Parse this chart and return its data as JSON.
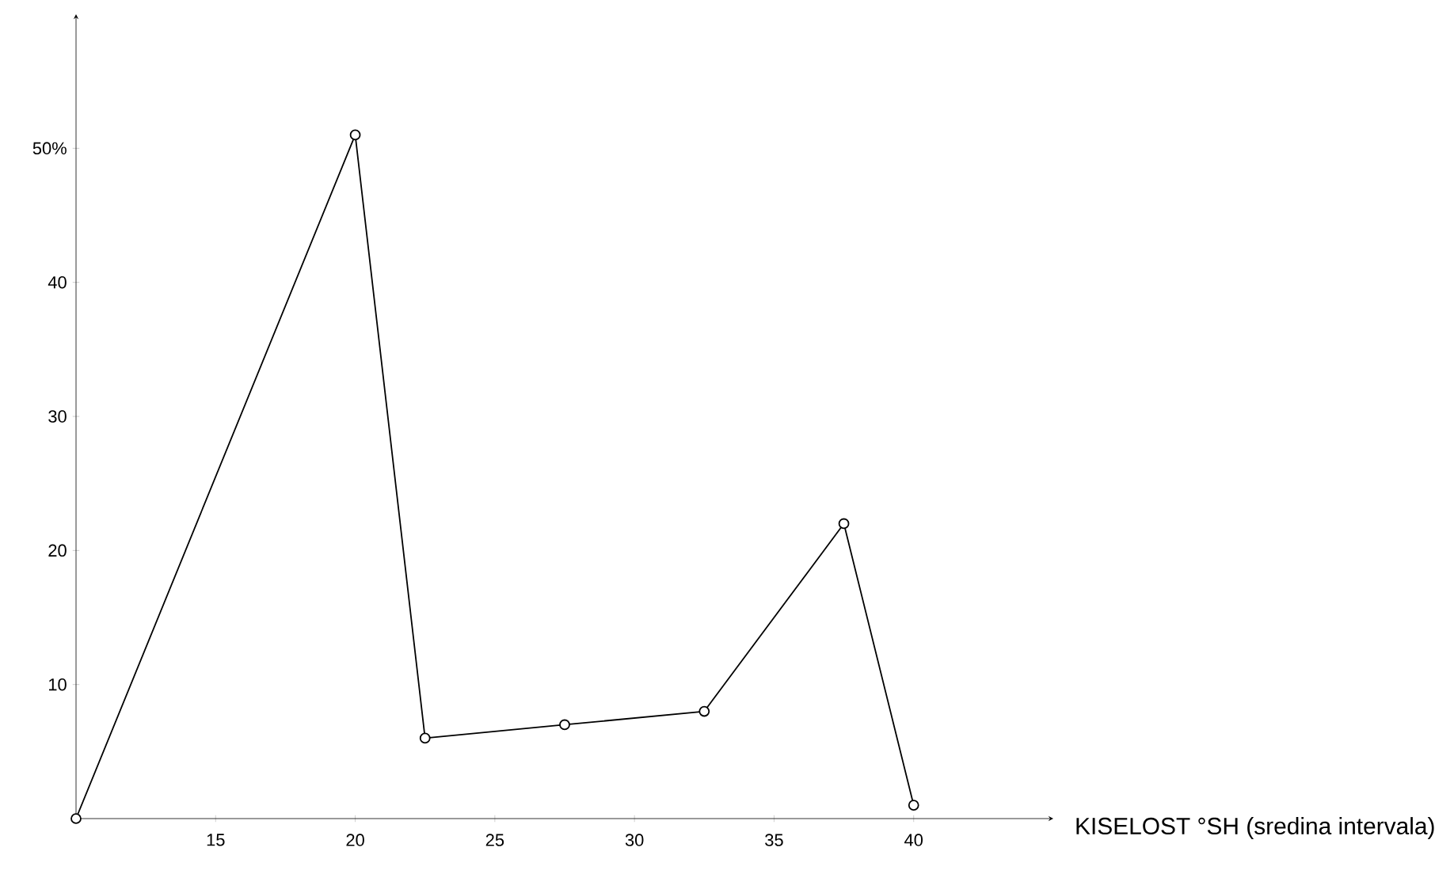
{
  "chart_data": {
    "type": "line",
    "xlabel": "KISELOST °SH (sredina intervala)",
    "x": [
      10,
      20,
      22.5,
      27.5,
      32.5,
      37.5,
      40
    ],
    "values": [
      0,
      51,
      6,
      7,
      8,
      22,
      1
    ],
    "color": "#000000",
    "marker": "circle",
    "line_style": "solid",
    "grid": false,
    "xlim": [
      10,
      45
    ],
    "ylim": [
      0,
      60
    ],
    "xticks": [
      15,
      20,
      25,
      30,
      35,
      40
    ],
    "yticks": [
      10,
      20,
      30,
      40,
      {
        "value": 50,
        "label": "50%"
      }
    ]
  }
}
